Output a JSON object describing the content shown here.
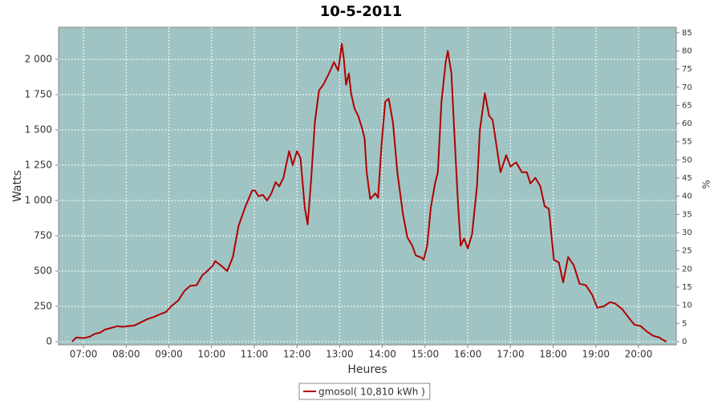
{
  "chart_data": {
    "type": "line",
    "title": "10-5-2011",
    "xlabel": "Heures",
    "ylabel": "Watts",
    "y2label": "%",
    "x": [
      "06:44",
      "06:50",
      "07:00",
      "07:09",
      "07:16",
      "07:24",
      "07:30",
      "07:41",
      "07:48",
      "07:55",
      "08:03",
      "08:12",
      "08:22",
      "08:30",
      "08:39",
      "08:48",
      "08:56",
      "09:03",
      "09:13",
      "09:22",
      "09:30",
      "09:39",
      "09:47",
      "09:54",
      "10:02",
      "10:05",
      "10:13",
      "10:22",
      "10:30",
      "10:38",
      "10:47",
      "10:57",
      "11:01",
      "11:06",
      "11:12",
      "11:18",
      "11:24",
      "11:30",
      "11:35",
      "11:41",
      "11:49",
      "11:54",
      "12:00",
      "12:05",
      "12:11",
      "12:15",
      "12:20",
      "12:25",
      "12:31",
      "12:37",
      "12:45",
      "12:52",
      "12:58",
      "13:03",
      "13:06",
      "13:09",
      "13:13",
      "13:16",
      "13:21",
      "13:26",
      "13:31",
      "13:35",
      "13:38",
      "13:43",
      "13:50",
      "13:54",
      "13:59",
      "14:04",
      "14:09",
      "14:15",
      "14:21",
      "14:29",
      "14:35",
      "14:42",
      "14:47",
      "14:55",
      "14:58",
      "15:03",
      "15:08",
      "15:14",
      "15:18",
      "15:23",
      "15:29",
      "15:32",
      "15:37",
      "15:41",
      "15:46",
      "15:50",
      "15:55",
      "16:00",
      "16:06",
      "16:13",
      "16:17",
      "16:24",
      "16:30",
      "16:35",
      "16:40",
      "16:46",
      "16:54",
      "17:00",
      "17:08",
      "17:16",
      "17:23",
      "17:28",
      "17:35",
      "17:42",
      "17:48",
      "17:54",
      "18:01",
      "18:08",
      "18:14",
      "18:21",
      "18:29",
      "18:37",
      "18:46",
      "18:55",
      "19:02",
      "19:11",
      "19:20",
      "19:27",
      "19:37",
      "19:46",
      "19:54",
      "20:03",
      "20:12",
      "20:21",
      "20:29",
      "20:35",
      "20:39"
    ],
    "series": [
      {
        "name": "gmosol( 10,810 kWh )",
        "color": "#b00000",
        "values": [
          0,
          30,
          25,
          35,
          55,
          65,
          85,
          100,
          110,
          105,
          110,
          115,
          140,
          160,
          175,
          195,
          210,
          250,
          290,
          360,
          395,
          400,
          470,
          500,
          540,
          570,
          540,
          500,
          600,
          820,
          950,
          1070,
          1070,
          1030,
          1040,
          1000,
          1050,
          1130,
          1100,
          1160,
          1350,
          1250,
          1350,
          1300,
          950,
          830,
          1150,
          1550,
          1780,
          1820,
          1900,
          1980,
          1920,
          2110,
          2000,
          1820,
          1900,
          1760,
          1650,
          1600,
          1520,
          1440,
          1200,
          1010,
          1050,
          1020,
          1400,
          1700,
          1720,
          1550,
          1200,
          900,
          740,
          680,
          610,
          595,
          580,
          680,
          950,
          1120,
          1200,
          1700,
          1980,
          2060,
          1900,
          1500,
          1000,
          680,
          730,
          660,
          760,
          1100,
          1500,
          1760,
          1600,
          1570,
          1400,
          1200,
          1320,
          1240,
          1270,
          1200,
          1200,
          1120,
          1160,
          1100,
          960,
          940,
          580,
          560,
          420,
          600,
          540,
          410,
          400,
          330,
          240,
          250,
          280,
          270,
          230,
          170,
          120,
          110,
          70,
          40,
          30,
          10,
          0
        ]
      }
    ],
    "xlim": [
      "06:25",
      "20:53"
    ],
    "xticks": [
      "07:00",
      "08:00",
      "09:00",
      "10:00",
      "11:00",
      "12:00",
      "13:00",
      "14:00",
      "15:00",
      "16:00",
      "17:00",
      "18:00",
      "19:00",
      "20:00"
    ],
    "ylim": [
      -23,
      2227
    ],
    "yticks": [
      0,
      250,
      500,
      750,
      {
        "value": 1000,
        "label": "1 000"
      },
      {
        "value": 1250,
        "label": "1 250"
      },
      {
        "value": 1500,
        "label": "1 500"
      },
      {
        "value": 1750,
        "label": "1 750"
      },
      {
        "value": 2000,
        "label": "2 000"
      }
    ],
    "y2lim": [
      -0.9,
      86.5
    ],
    "y2ticks": [
      0,
      5,
      10,
      15,
      20,
      25,
      30,
      35,
      40,
      45,
      50,
      55,
      60,
      65,
      70,
      75,
      80,
      85
    ],
    "grid": true,
    "legend": "bottom",
    "background": "#a0c4c4"
  }
}
